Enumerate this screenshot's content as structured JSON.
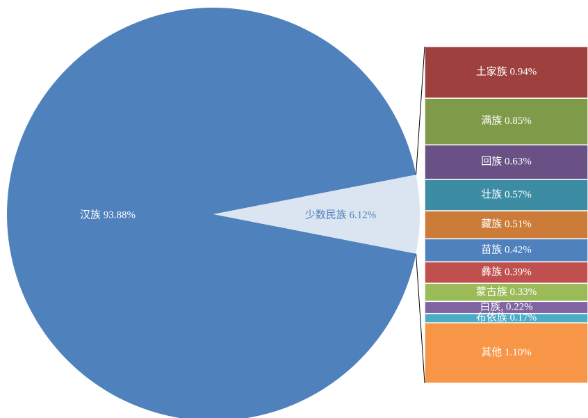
{
  "chart_data": {
    "type": "pie",
    "values": [
      93.88,
      6.12
    ],
    "value_labels": [
      "汉族 93.88%",
      "少数民族 6.12%"
    ],
    "colors": [
      "#4f81bd",
      "#dbe5f1"
    ],
    "label_colors": [
      "#ffffff",
      "#4f81bd"
    ],
    "breakdown": {
      "type": "bar",
      "values": [
        0.94,
        0.85,
        0.63,
        0.57,
        0.51,
        0.42,
        0.39,
        0.33,
        0.22,
        0.17,
        1.1
      ],
      "value_labels": [
        "土家族 0.94%",
        "满族 0.85%",
        "回族 0.63%",
        "壮族 0.57%",
        "藏族 0.51%",
        "苗族 0.42%",
        "彝族 0.39%",
        "蒙古族 0.33%",
        "白族, 0.22%",
        "布依族 0.17%",
        "其他 1.10%"
      ],
      "colors": [
        "#9e413e",
        "#7f9a48",
        "#695185",
        "#3c8da3",
        "#cc7b38",
        "#4f81bd",
        "#c0504d",
        "#9bbb59",
        "#8064a2",
        "#4bacc6",
        "#f79646"
      ]
    }
  }
}
